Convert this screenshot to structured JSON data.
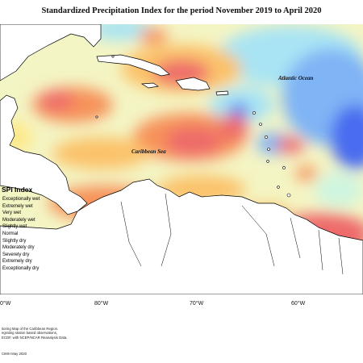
{
  "title": "Standardized Precipitation Index for the period November 2019 to April 2020",
  "labels": {
    "atlantic": "Atlantic Ocean",
    "caribbean": "Caribbean Sea"
  },
  "legend": {
    "title": "SPI Index",
    "items": [
      {
        "label": "Exceptionally wet",
        "color": "#1e2fd8"
      },
      {
        "label": "Extremely wet",
        "color": "#4a6cf0"
      },
      {
        "label": "Very wet",
        "color": "#7fb4f5"
      },
      {
        "label": "Moderately wet",
        "color": "#a8e4f4"
      },
      {
        "label": "Slightly wet",
        "color": "#cff5e0"
      },
      {
        "label": "Normal",
        "color": "#f4f7c6"
      },
      {
        "label": "Slightly dry",
        "color": "#fde98a"
      },
      {
        "label": "Moderately dry",
        "color": "#fbc26a"
      },
      {
        "label": "Severely dry",
        "color": "#f7925a"
      },
      {
        "label": "Extremely dry",
        "color": "#ee6a6a"
      },
      {
        "label": "Exceptionally dry",
        "color": "#d73838"
      }
    ]
  },
  "longitudes": [
    "0°W",
    "80°W",
    "70°W",
    "60°W"
  ],
  "footnotes": [
    "itoring Map of the Caribbean Region.",
    "egrating station based observations,",
    "ECDF, with NCEP/NCAR Reanalysis Data."
  ],
  "credit": "CIMH May 2020"
}
